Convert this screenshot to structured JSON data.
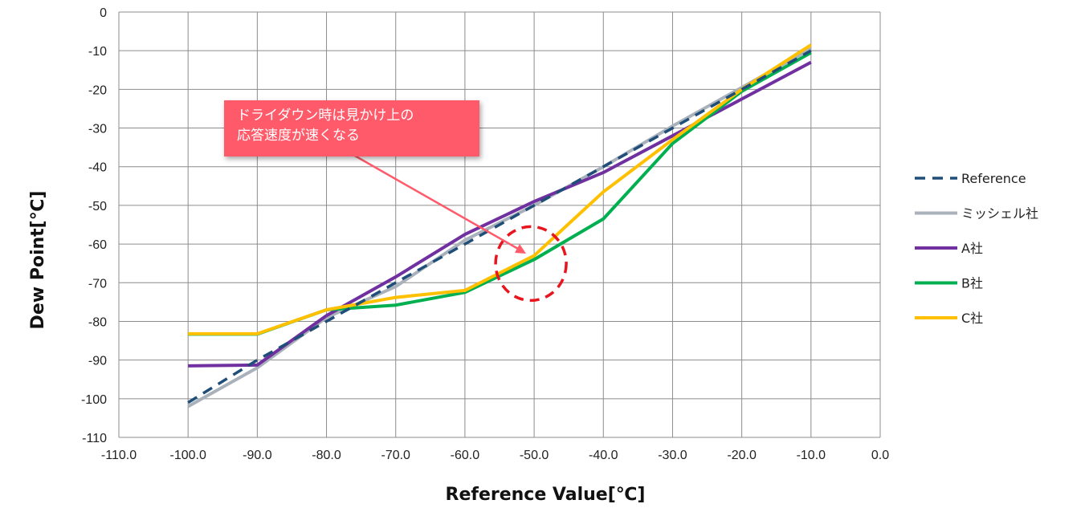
{
  "chart_data": {
    "type": "line",
    "xlabel": "Reference Value[℃]",
    "ylabel": "Dew Point[℃]",
    "xlim": [
      -110,
      0
    ],
    "ylim": [
      -110,
      0
    ],
    "x_ticks": [
      "-110.0",
      "-100.0",
      "-90.0",
      "-80.0",
      "-70.0",
      "-60.0",
      "-50.0",
      "-40.0",
      "-30.0",
      "-20.0",
      "-10.0",
      "0.0"
    ],
    "y_ticks": [
      "0",
      "-10",
      "-20",
      "-30",
      "-40",
      "-50",
      "-60",
      "-70",
      "-80",
      "-90",
      "-100",
      "-110"
    ],
    "grid": true,
    "legend_position": "right",
    "series": [
      {
        "name": "Reference",
        "color": "#1f4e79",
        "dash": true,
        "points": [
          [
            -100,
            -101
          ],
          [
            -90,
            -90
          ],
          [
            -80,
            -80
          ],
          [
            -70,
            -70
          ],
          [
            -60,
            -60
          ],
          [
            -50,
            -50
          ],
          [
            -40,
            -40
          ],
          [
            -30,
            -30
          ],
          [
            -20,
            -20
          ],
          [
            -10,
            -10
          ]
        ]
      },
      {
        "name": "ミッシェル社",
        "color": "#a9b1bb",
        "dash": false,
        "points": [
          [
            -100,
            -102
          ],
          [
            -90,
            -92
          ],
          [
            -80,
            -79
          ],
          [
            -70,
            -71
          ],
          [
            -60,
            -59
          ],
          [
            -50,
            -50
          ],
          [
            -40,
            -40
          ],
          [
            -30,
            -29.5
          ],
          [
            -20,
            -19.5
          ],
          [
            -10,
            -9.5
          ]
        ]
      },
      {
        "name": "A社",
        "color": "#7030a0",
        "dash": false,
        "points": [
          [
            -100,
            -91.5
          ],
          [
            -90,
            -91.3
          ],
          [
            -80,
            -78.5
          ],
          [
            -70,
            -68.5
          ],
          [
            -60,
            -57.5
          ],
          [
            -50,
            -49
          ],
          [
            -40,
            -41.5
          ],
          [
            -30,
            -32
          ],
          [
            -20,
            -22.5
          ],
          [
            -10,
            -13
          ]
        ]
      },
      {
        "name": "B社",
        "color": "#00b050",
        "dash": false,
        "points": [
          [
            -100,
            -83.3
          ],
          [
            -90,
            -83.3
          ],
          [
            -80,
            -77
          ],
          [
            -70,
            -75.8
          ],
          [
            -60,
            -72.5
          ],
          [
            -50,
            -64
          ],
          [
            -40,
            -53.5
          ],
          [
            -30,
            -34
          ],
          [
            -20,
            -20.5
          ],
          [
            -10,
            -10.5
          ]
        ]
      },
      {
        "name": "C社",
        "color": "#ffc000",
        "dash": false,
        "points": [
          [
            -100,
            -83.2
          ],
          [
            -90,
            -83.2
          ],
          [
            -80,
            -77
          ],
          [
            -70,
            -73.8
          ],
          [
            -60,
            -72
          ],
          [
            -50,
            -63
          ],
          [
            -40,
            -46.5
          ],
          [
            -30,
            -33
          ],
          [
            -20,
            -20
          ],
          [
            -10,
            -8.5
          ]
        ]
      }
    ],
    "annotation": {
      "lines": [
        "ドライダウン時は見かけ上の",
        "応答速度が速くなる"
      ],
      "target": [
        -50,
        -64
      ]
    }
  }
}
